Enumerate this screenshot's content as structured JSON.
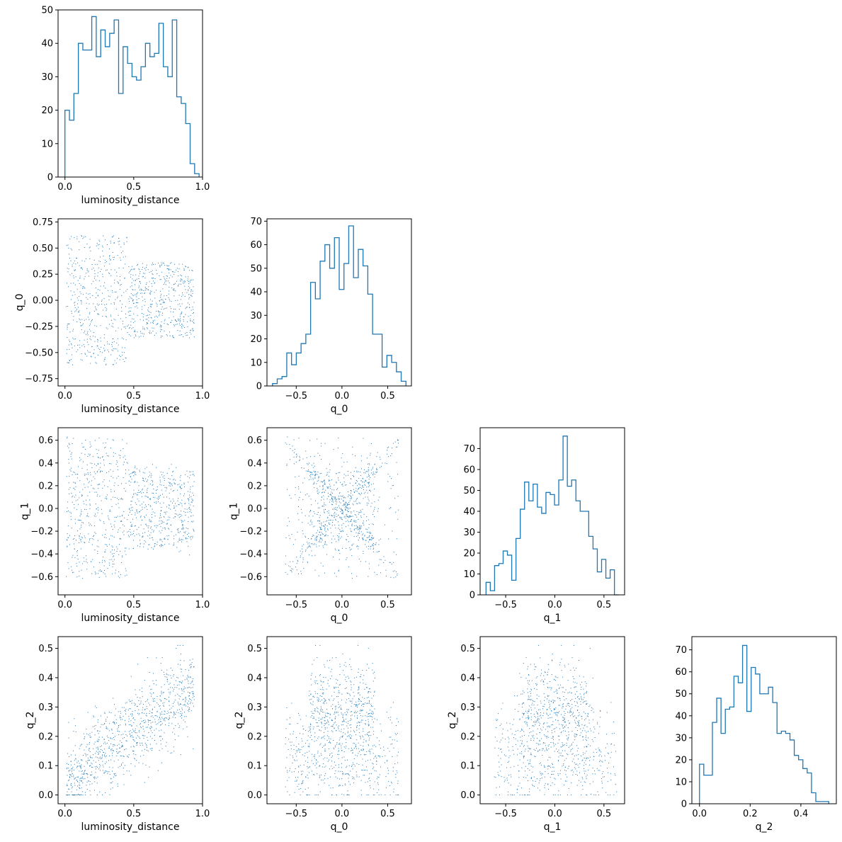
{
  "colors": {
    "series": "#1f77b4",
    "axes": "#000000",
    "background": "#ffffff"
  },
  "chart_data": [
    {
      "id": "hist-luminosity_distance",
      "type": "histogram",
      "xlabel": "luminosity_distance",
      "xlim": [
        -0.05,
        1.0
      ],
      "ylim": [
        0,
        50
      ],
      "xticks": [
        0.0,
        0.5,
        1.0
      ],
      "xticklabels": [
        "0.0",
        "0.5",
        "1.0"
      ],
      "yticks": [
        0,
        10,
        20,
        30,
        40,
        50
      ],
      "yticklabels": [
        "0",
        "10",
        "20",
        "30",
        "40",
        "50"
      ],
      "bin_range": [
        0.0,
        0.975
      ],
      "counts": [
        20,
        17,
        25,
        40,
        38,
        38,
        48,
        36,
        44,
        39,
        43,
        47,
        25,
        39,
        34,
        30,
        29,
        33,
        40,
        36,
        37,
        46,
        33,
        30,
        47,
        24,
        22,
        16,
        4,
        1
      ]
    },
    {
      "id": "scatter-luminosity_distance-q_0",
      "type": "scatter",
      "xlabel": "luminosity_distance",
      "ylabel": "q_0",
      "xlim": [
        -0.05,
        1.0
      ],
      "ylim": [
        -0.82,
        0.78
      ],
      "xticks": [
        0.0,
        0.5,
        1.0
      ],
      "xticklabels": [
        "0.0",
        "0.5",
        "1.0"
      ],
      "yticks": [
        -0.75,
        -0.5,
        -0.25,
        0.0,
        0.25,
        0.5,
        0.75
      ],
      "yticklabels": [
        "−0.75",
        "−0.50",
        "−0.25",
        "0.00",
        "0.25",
        "0.50",
        "0.75"
      ],
      "n_points": 1000
    },
    {
      "id": "hist-q_0",
      "type": "histogram",
      "xlabel": "q_0",
      "xlim": [
        -0.82,
        0.76
      ],
      "ylim": [
        0,
        71
      ],
      "xticks": [
        -0.5,
        0.0,
        0.5
      ],
      "xticklabels": [
        "−0.5",
        "0.0",
        "0.5"
      ],
      "yticks": [
        0,
        10,
        20,
        30,
        40,
        50,
        60,
        70
      ],
      "yticklabels": [
        "0",
        "10",
        "20",
        "30",
        "40",
        "50",
        "60",
        "70"
      ],
      "bin_range": [
        -0.76,
        0.7
      ],
      "counts": [
        1,
        3,
        4,
        14,
        9,
        14,
        18,
        22,
        44,
        37,
        53,
        60,
        50,
        63,
        41,
        52,
        68,
        46,
        58,
        51,
        39,
        22,
        22,
        8,
        13,
        10,
        6,
        2
      ]
    },
    {
      "id": "scatter-luminosity_distance-q_1",
      "type": "scatter",
      "xlabel": "luminosity_distance",
      "ylabel": "q_1",
      "xlim": [
        -0.05,
        1.0
      ],
      "ylim": [
        -0.76,
        0.71
      ],
      "xticks": [
        0.0,
        0.5,
        1.0
      ],
      "xticklabels": [
        "0.0",
        "0.5",
        "1.0"
      ],
      "yticks": [
        -0.6,
        -0.4,
        -0.2,
        0.0,
        0.2,
        0.4,
        0.6
      ],
      "yticklabels": [
        "−0.6",
        "−0.4",
        "−0.2",
        "0.0",
        "0.2",
        "0.4",
        "0.6"
      ],
      "n_points": 1000
    },
    {
      "id": "scatter-q_0-q_1",
      "type": "scatter",
      "xlabel": "q_0",
      "ylabel": "q_1",
      "xlim": [
        -0.82,
        0.76
      ],
      "ylim": [
        -0.76,
        0.71
      ],
      "xticks": [
        -0.5,
        0.0,
        0.5
      ],
      "xticklabels": [
        "−0.5",
        "0.0",
        "0.5"
      ],
      "yticks": [
        -0.6,
        -0.4,
        -0.2,
        0.0,
        0.2,
        0.4,
        0.6
      ],
      "yticklabels": [
        "−0.6",
        "−0.4",
        "−0.2",
        "0.0",
        "0.2",
        "0.4",
        "0.6"
      ],
      "n_points": 1000
    },
    {
      "id": "hist-q_1",
      "type": "histogram",
      "xlabel": "q_1",
      "xlim": [
        -0.76,
        0.71
      ],
      "ylim": [
        0,
        80
      ],
      "xticks": [
        -0.5,
        0.0,
        0.5
      ],
      "xticklabels": [
        "−0.5",
        "0.0",
        "0.5"
      ],
      "yticks": [
        0,
        10,
        20,
        30,
        40,
        50,
        60,
        70
      ],
      "yticklabels": [
        "0",
        "10",
        "20",
        "30",
        "40",
        "50",
        "60",
        "70"
      ],
      "bin_range": [
        -0.7,
        0.65
      ],
      "counts": [
        6,
        2,
        14,
        15,
        21,
        19,
        7,
        27,
        41,
        54,
        45,
        53,
        42,
        39,
        49,
        48,
        43,
        55,
        76,
        52,
        55,
        45,
        40,
        40,
        28,
        22,
        11,
        17,
        8,
        12,
        0
      ]
    },
    {
      "id": "scatter-luminosity_distance-q_2",
      "type": "scatter",
      "xlabel": "luminosity_distance",
      "ylabel": "q_2",
      "xlim": [
        -0.05,
        1.0
      ],
      "ylim": [
        -0.03,
        0.54
      ],
      "xticks": [
        0.0,
        0.5,
        1.0
      ],
      "xticklabels": [
        "0.0",
        "0.5",
        "1.0"
      ],
      "yticks": [
        0.0,
        0.1,
        0.2,
        0.3,
        0.4,
        0.5
      ],
      "yticklabels": [
        "0.0",
        "0.1",
        "0.2",
        "0.3",
        "0.4",
        "0.5"
      ],
      "n_points": 1000
    },
    {
      "id": "scatter-q_0-q_2",
      "type": "scatter",
      "xlabel": "q_0",
      "ylabel": "q_2",
      "xlim": [
        -0.82,
        0.76
      ],
      "ylim": [
        -0.03,
        0.54
      ],
      "xticks": [
        -0.5,
        0.0,
        0.5
      ],
      "xticklabels": [
        "−0.5",
        "0.0",
        "0.5"
      ],
      "yticks": [
        0.0,
        0.1,
        0.2,
        0.3,
        0.4,
        0.5
      ],
      "yticklabels": [
        "0.0",
        "0.1",
        "0.2",
        "0.3",
        "0.4",
        "0.5"
      ],
      "n_points": 1000
    },
    {
      "id": "scatter-q_1-q_2",
      "type": "scatter",
      "xlabel": "q_1",
      "ylabel": "q_2",
      "xlim": [
        -0.76,
        0.71
      ],
      "ylim": [
        -0.03,
        0.54
      ],
      "xticks": [
        -0.5,
        0.0,
        0.5
      ],
      "xticklabels": [
        "−0.5",
        "0.0",
        "0.5"
      ],
      "yticks": [
        0.0,
        0.1,
        0.2,
        0.3,
        0.4,
        0.5
      ],
      "yticklabels": [
        "0.0",
        "0.1",
        "0.2",
        "0.3",
        "0.4",
        "0.5"
      ],
      "n_points": 1000
    },
    {
      "id": "hist-q_2",
      "type": "histogram",
      "xlabel": "q_2",
      "xlim": [
        -0.03,
        0.54
      ],
      "ylim": [
        0,
        76
      ],
      "xticks": [
        0.0,
        0.2,
        0.4
      ],
      "xticklabels": [
        "0.0",
        "0.2",
        "0.4"
      ],
      "yticks": [
        0,
        10,
        20,
        30,
        40,
        50,
        60,
        70
      ],
      "yticklabels": [
        "0",
        "10",
        "20",
        "30",
        "40",
        "50",
        "60",
        "70"
      ],
      "bin_range": [
        0.0,
        0.51
      ],
      "counts": [
        18,
        13,
        13,
        37,
        48,
        32,
        43,
        44,
        58,
        55,
        72,
        42,
        62,
        59,
        50,
        50,
        53,
        46,
        32,
        33,
        32,
        29,
        22,
        20,
        16,
        14,
        5,
        1,
        1,
        1
      ]
    }
  ]
}
